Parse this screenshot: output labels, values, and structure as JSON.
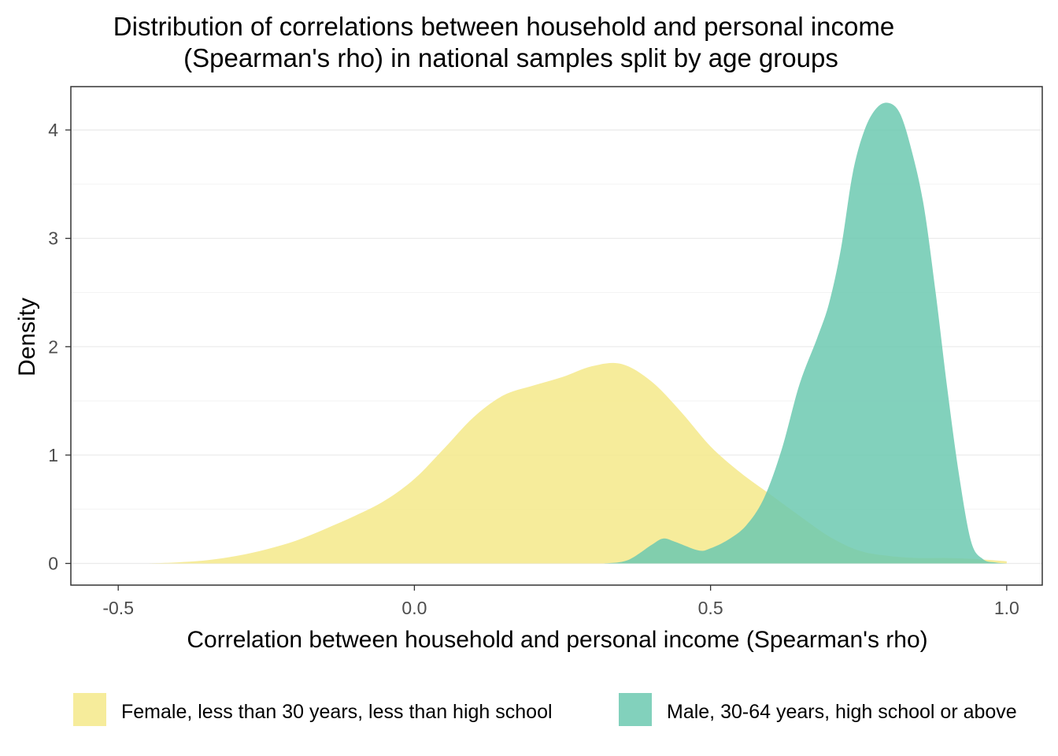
{
  "chart_data": {
    "type": "area",
    "chart_subtype": "density",
    "title": [
      "Distribution of correlations between household and personal income",
      "(Spearman's rho) in national samples split by age groups"
    ],
    "xlabel": "Correlation between household and personal income (Spearman's rho)",
    "ylabel": "Density",
    "xlim": [
      -0.58,
      1.06
    ],
    "ylim": [
      -0.2,
      4.4
    ],
    "x_ticks": [
      -0.5,
      0.0,
      0.5,
      1.0
    ],
    "x_tick_labels": [
      "-0.5",
      "0.0",
      "0.5",
      "1.0"
    ],
    "y_ticks": [
      0,
      1,
      2,
      3,
      4
    ],
    "y_tick_labels": [
      "0",
      "1",
      "2",
      "3",
      "4"
    ],
    "grid": true,
    "legend_position": "bottom",
    "series": [
      {
        "name": "Female, less than 30 years, less than high school",
        "color": "#f4e98a",
        "opacity": 0.85,
        "x": [
          -0.45,
          -0.4,
          -0.35,
          -0.3,
          -0.25,
          -0.2,
          -0.15,
          -0.1,
          -0.05,
          0.0,
          0.05,
          0.1,
          0.15,
          0.2,
          0.25,
          0.3,
          0.35,
          0.4,
          0.45,
          0.5,
          0.55,
          0.6,
          0.65,
          0.7,
          0.75,
          0.8,
          0.85,
          0.9,
          0.95,
          1.0
        ],
        "y": [
          0.0,
          0.01,
          0.03,
          0.07,
          0.13,
          0.21,
          0.32,
          0.44,
          0.58,
          0.78,
          1.06,
          1.35,
          1.55,
          1.64,
          1.72,
          1.82,
          1.84,
          1.68,
          1.4,
          1.08,
          0.84,
          0.64,
          0.44,
          0.25,
          0.12,
          0.07,
          0.05,
          0.05,
          0.04,
          0.02
        ]
      },
      {
        "name": "Male, 30-64 years, high school or above",
        "color": "#6cc9b0",
        "opacity": 0.85,
        "x": [
          0.32,
          0.36,
          0.4,
          0.42,
          0.44,
          0.48,
          0.5,
          0.53,
          0.56,
          0.59,
          0.62,
          0.65,
          0.68,
          0.7,
          0.72,
          0.74,
          0.76,
          0.78,
          0.8,
          0.82,
          0.84,
          0.86,
          0.88,
          0.9,
          0.92,
          0.94,
          0.96,
          0.98,
          1.0
        ],
        "y": [
          0.0,
          0.03,
          0.17,
          0.23,
          0.2,
          0.12,
          0.14,
          0.22,
          0.35,
          0.6,
          1.05,
          1.65,
          2.08,
          2.4,
          2.9,
          3.6,
          4.0,
          4.2,
          4.25,
          4.15,
          3.8,
          3.3,
          2.5,
          1.6,
          0.8,
          0.2,
          0.04,
          0.01,
          0.0
        ]
      }
    ]
  }
}
